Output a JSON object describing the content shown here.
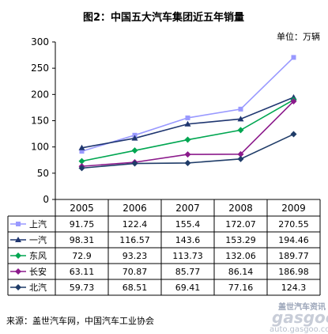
{
  "chart_data": {
    "type": "line",
    "title": "图2：中国五大汽车集团近五年销量",
    "unit": "单位：万辆",
    "categories": [
      "2005",
      "2006",
      "2007",
      "2008",
      "2009"
    ],
    "y_ticks": [
      "0",
      "50",
      "100",
      "150",
      "200",
      "250",
      "300"
    ],
    "ylim": [
      0,
      300
    ],
    "series": [
      {
        "name": "上汽",
        "values": [
          91.75,
          122.4,
          155.4,
          172.07,
          270.55
        ],
        "labels": [
          "91.75",
          "122.4",
          "155.4",
          "172.07",
          "270.55"
        ],
        "color": "#9999ff",
        "marker": "square"
      },
      {
        "name": "一汽",
        "values": [
          98.31,
          116.57,
          143.6,
          153.29,
          194.46
        ],
        "labels": [
          "98.31",
          "116.57",
          "143.6",
          "153.29",
          "194.46"
        ],
        "color": "#1f3670",
        "marker": "triangle"
      },
      {
        "name": "东风",
        "values": [
          72.9,
          93.23,
          113.73,
          132.06,
          189.77
        ],
        "labels": [
          "72.9",
          "93.23",
          "113.73",
          "132.06",
          "189.77"
        ],
        "color": "#00a651",
        "marker": "diamond"
      },
      {
        "name": "长安",
        "values": [
          63.11,
          70.87,
          85.77,
          86.14,
          186.98
        ],
        "labels": [
          "63.11",
          "70.87",
          "85.77",
          "86.14",
          "186.98"
        ],
        "color": "#8b1a8b",
        "marker": "diamond"
      },
      {
        "name": "北汽",
        "values": [
          59.73,
          68.51,
          69.41,
          77.16,
          124.3
        ],
        "labels": [
          "59.73",
          "68.51",
          "69.41",
          "77.16",
          "124.3"
        ],
        "color": "#1f3c68",
        "marker": "diamond"
      }
    ],
    "grid": false,
    "legend": "data-table"
  },
  "source": "来源：盖世汽车网，中国汽车工业协会",
  "watermark": {
    "line1": "盖世汽车资讯",
    "line2": "gasgoo",
    "line3": "auto.gasgoo.com"
  }
}
